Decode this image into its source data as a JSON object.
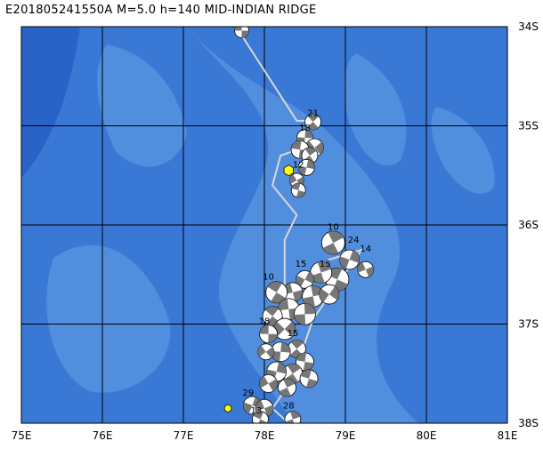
{
  "title": "E201805241550A M=5.0 h=140 MID-INDIAN RIDGE",
  "map": {
    "lon_range": [
      75,
      81
    ],
    "lat_range": [
      -38,
      -34
    ],
    "lon_ticks": [
      "75E",
      "76E",
      "77E",
      "78E",
      "79E",
      "80E",
      "81E"
    ],
    "lat_ticks": [
      "34S",
      "35S",
      "36S",
      "37S",
      "38S"
    ],
    "colors": {
      "ocean_deep": "#2a63c8",
      "ocean_mid": "#3a78d6",
      "ocean_shallow": "#5a95e0",
      "grid": "#000000",
      "plate_boundary": "#d8d8d8",
      "event_star": "#ffff00"
    },
    "plate_boundary": [
      [
        77.65,
        -34.0
      ],
      [
        78.4,
        -34.95
      ],
      [
        78.55,
        -34.95
      ],
      [
        78.55,
        -35.2
      ],
      [
        78.2,
        -35.3
      ],
      [
        78.1,
        -35.6
      ],
      [
        78.4,
        -35.9
      ],
      [
        78.25,
        -36.15
      ],
      [
        78.25,
        -36.7
      ],
      [
        78.8,
        -36.35
      ],
      [
        79.2,
        -36.25
      ],
      [
        78.6,
        -36.95
      ],
      [
        78.35,
        -37.55
      ],
      [
        78.1,
        -37.85
      ],
      [
        78.3,
        -38.0
      ]
    ],
    "event": {
      "lon": 78.3,
      "lat": -35.45
    },
    "event_labels": [
      {
        "text": "21",
        "lon": 78.6,
        "lat": -34.9
      },
      {
        "text": "18",
        "lon": 78.5,
        "lat": -35.05
      },
      {
        "text": "12",
        "lon": 78.42,
        "lat": -35.42
      },
      {
        "text": "10",
        "lon": 78.85,
        "lat": -36.05
      },
      {
        "text": "24",
        "lon": 79.1,
        "lat": -36.18
      },
      {
        "text": "14",
        "lon": 79.25,
        "lat": -36.27
      },
      {
        "text": "15",
        "lon": 78.45,
        "lat": -36.42
      },
      {
        "text": "15",
        "lon": 78.75,
        "lat": -36.42
      },
      {
        "text": "10",
        "lon": 78.05,
        "lat": -36.55
      },
      {
        "text": "18",
        "lon": 78.0,
        "lat": -37.0
      },
      {
        "text": "15",
        "lon": 78.35,
        "lat": -37.12
      },
      {
        "text": "29",
        "lon": 77.8,
        "lat": -37.72
      },
      {
        "text": "28",
        "lon": 78.3,
        "lat": -37.85
      },
      {
        "text": "13",
        "lon": 77.9,
        "lat": -37.9
      }
    ],
    "mechanisms": [
      {
        "lon": 77.72,
        "lat": -34.04,
        "r": 8
      },
      {
        "lon": 78.6,
        "lat": -34.96,
        "r": 9
      },
      {
        "lon": 78.5,
        "lat": -35.12,
        "r": 9
      },
      {
        "lon": 78.62,
        "lat": -35.22,
        "r": 10
      },
      {
        "lon": 78.44,
        "lat": -35.24,
        "r": 10
      },
      {
        "lon": 78.56,
        "lat": -35.3,
        "r": 9
      },
      {
        "lon": 78.52,
        "lat": -35.42,
        "r": 9
      },
      {
        "lon": 78.4,
        "lat": -35.55,
        "r": 8
      },
      {
        "lon": 78.42,
        "lat": -35.65,
        "r": 8
      },
      {
        "lon": 78.85,
        "lat": -36.18,
        "r": 13
      },
      {
        "lon": 79.05,
        "lat": -36.35,
        "r": 11
      },
      {
        "lon": 79.25,
        "lat": -36.45,
        "r": 9
      },
      {
        "lon": 78.9,
        "lat": -36.55,
        "r": 13
      },
      {
        "lon": 78.7,
        "lat": -36.48,
        "r": 12
      },
      {
        "lon": 78.5,
        "lat": -36.55,
        "r": 10
      },
      {
        "lon": 78.35,
        "lat": -36.68,
        "r": 11
      },
      {
        "lon": 78.15,
        "lat": -36.68,
        "r": 12
      },
      {
        "lon": 78.6,
        "lat": -36.72,
        "r": 12
      },
      {
        "lon": 78.8,
        "lat": -36.7,
        "r": 11
      },
      {
        "lon": 78.3,
        "lat": -36.85,
        "r": 12
      },
      {
        "lon": 78.1,
        "lat": -36.92,
        "r": 11
      },
      {
        "lon": 78.5,
        "lat": -36.9,
        "r": 12
      },
      {
        "lon": 78.25,
        "lat": -37.05,
        "r": 12
      },
      {
        "lon": 78.05,
        "lat": -37.1,
        "r": 10
      },
      {
        "lon": 78.4,
        "lat": -37.25,
        "r": 10
      },
      {
        "lon": 78.2,
        "lat": -37.28,
        "r": 11
      },
      {
        "lon": 78.02,
        "lat": -37.28,
        "r": 9
      },
      {
        "lon": 78.5,
        "lat": -37.38,
        "r": 10
      },
      {
        "lon": 78.35,
        "lat": -37.5,
        "r": 11
      },
      {
        "lon": 78.15,
        "lat": -37.48,
        "r": 11
      },
      {
        "lon": 78.05,
        "lat": -37.6,
        "r": 10
      },
      {
        "lon": 78.55,
        "lat": -37.55,
        "r": 10
      },
      {
        "lon": 78.28,
        "lat": -37.64,
        "r": 10
      },
      {
        "lon": 77.85,
        "lat": -37.82,
        "r": 10
      },
      {
        "lon": 78.0,
        "lat": -37.85,
        "r": 10
      },
      {
        "lon": 77.95,
        "lat": -37.96,
        "r": 9
      },
      {
        "lon": 78.35,
        "lat": -37.96,
        "r": 9
      }
    ],
    "small_events": [
      {
        "lon": 77.55,
        "lat": -37.85
      }
    ]
  }
}
